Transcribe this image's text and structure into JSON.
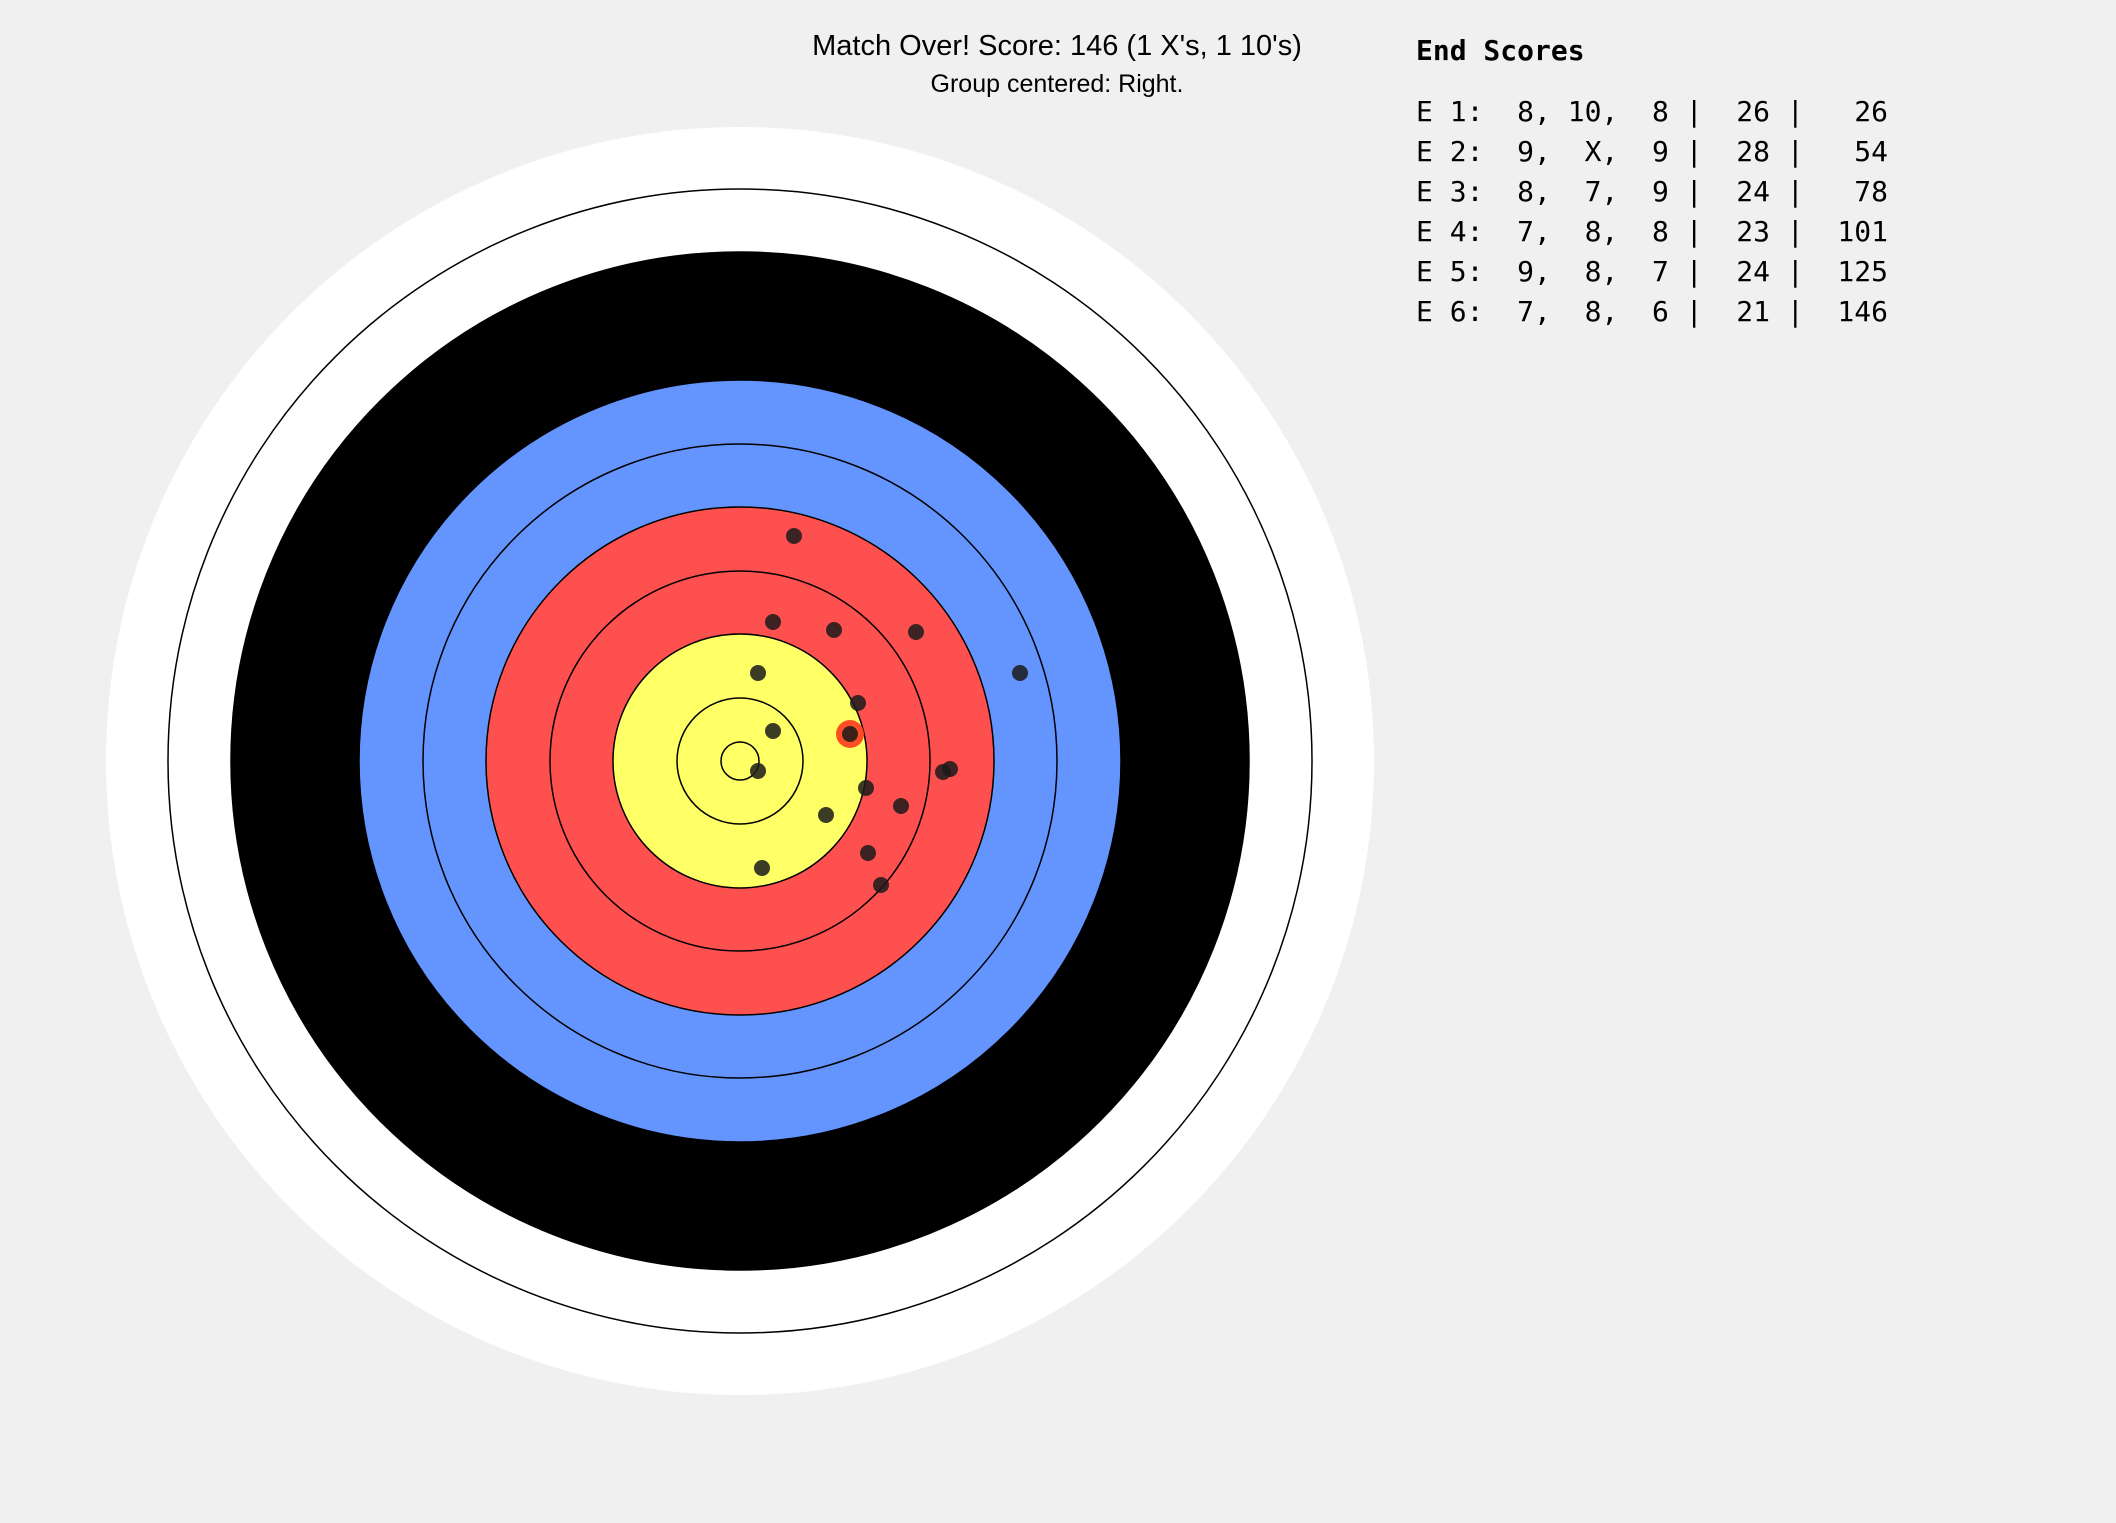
{
  "header": {
    "title": "Match Over! Score: 146 (1 X's, 1 10's)",
    "subtitle": "Group centered: Right."
  },
  "scores": {
    "title": "End Scores",
    "rows": [
      "E 1:  8, 10,  8 |  26 |   26",
      "E 2:  9,  X,  9 |  28 |   54",
      "E 3:  8,  7,  9 |  24 |   78",
      "E 4:  7,  8,  8 |  23 |  101",
      "E 5:  9,  8,  7 |  24 |  125",
      "E 6:  7,  8,  6 |  21 |  146"
    ]
  }
}
